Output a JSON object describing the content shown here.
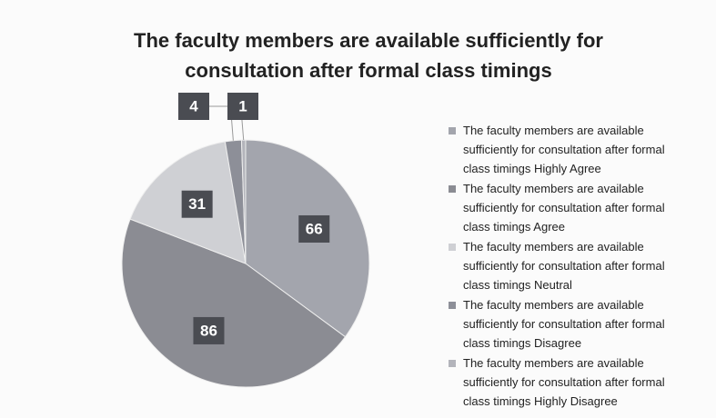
{
  "chart_data": {
    "type": "pie",
    "title": "The faculty members are available sufficiently for consultation after formal class timings",
    "title_lines": [
      "The faculty members are available sufficiently for",
      "consultation after formal class timings"
    ],
    "categories": [
      "The faculty members are available sufficiently for consultation after formal class timings Highly Agree",
      "The faculty members are available sufficiently for consultation after formal class timings Agree",
      "The faculty members are available sufficiently for consultation after formal class timings Neutral",
      "The faculty members are available sufficiently for consultation after formal class timings Disagree",
      "The faculty members are available sufficiently for consultation after formal class timings Highly Disagree"
    ],
    "values": [
      66,
      86,
      31,
      4,
      1
    ],
    "colors": [
      "#a3a5ad",
      "#8b8c93",
      "#cfd0d4",
      "#8d8f98",
      "#b3b4bb"
    ],
    "legend": "right"
  }
}
